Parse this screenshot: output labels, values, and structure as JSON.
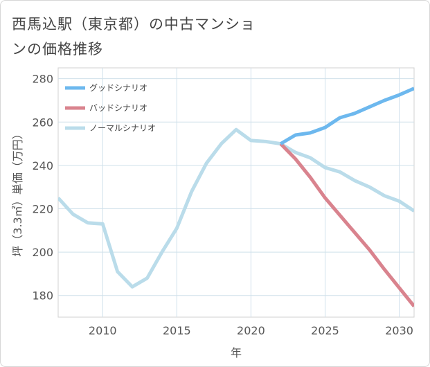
{
  "chart_data": {
    "type": "line",
    "title": "西馬込駅（東京都）の中古マンションの価格推移",
    "xlabel": "年",
    "ylabel": "坪（3.3㎡）単価（万円）",
    "xlim": [
      2007,
      2031
    ],
    "ylim": [
      170,
      285
    ],
    "x_ticks": [
      2010,
      2015,
      2020,
      2025,
      2030
    ],
    "y_ticks": [
      180,
      200,
      220,
      240,
      260,
      280
    ],
    "grid": true,
    "legend_position": "top-left",
    "series": [
      {
        "name": "グッドシナリオ",
        "color": "#6db8ee",
        "x": [
          2022,
          2023,
          2024,
          2025,
          2026,
          2027,
          2028,
          2029,
          2030,
          2031
        ],
        "values": [
          250,
          254,
          255,
          257.5,
          262,
          264,
          267,
          270,
          272.5,
          275.5
        ]
      },
      {
        "name": "バッドシナリオ",
        "color": "#d9838e",
        "x": [
          2022,
          2023,
          2024,
          2025,
          2026,
          2027,
          2028,
          2029,
          2030,
          2031
        ],
        "values": [
          250,
          243,
          234.5,
          225,
          217,
          209,
          201,
          192,
          183.5,
          175
        ]
      },
      {
        "name": "ノーマルシナリオ",
        "color": "#badcea",
        "x": [
          2007,
          2008,
          2009,
          2010,
          2011,
          2012,
          2013,
          2014,
          2015,
          2016,
          2017,
          2018,
          2019,
          2020,
          2021,
          2022,
          2023,
          2024,
          2025,
          2026,
          2027,
          2028,
          2029,
          2030,
          2031
        ],
        "values": [
          225,
          217.5,
          213.5,
          213,
          191,
          184,
          188,
          200,
          211,
          228,
          241,
          250,
          256.5,
          251.5,
          251,
          250,
          246,
          243.5,
          239,
          237,
          233,
          230,
          226,
          223.5,
          219
        ]
      }
    ]
  }
}
